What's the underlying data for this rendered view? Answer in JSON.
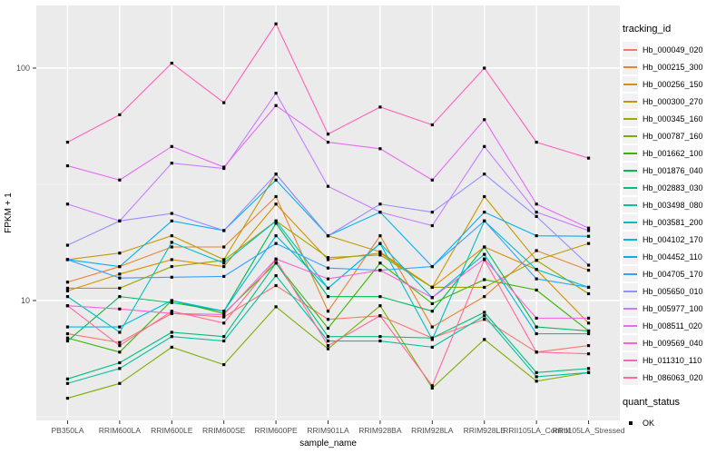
{
  "chart_data": {
    "type": "line",
    "title": "",
    "xlabel": "sample_name",
    "ylabel": "FPKM + 1",
    "y_scale": "log10",
    "y_ticks": [
      10,
      100
    ],
    "y_minor_ticks": [
      3.162,
      31.62
    ],
    "y_range": [
      3.2,
      180
    ],
    "grid": "on",
    "panel_bg": "#EBEBEB",
    "grid_color": "#FFFFFF",
    "tick_label_color": "#4D4D4D",
    "marker": "black-square",
    "legend_position": "right",
    "legend_title": "tracking_id",
    "legend2_title": "quant_status",
    "legend2_items": [
      "OK"
    ],
    "x_categories": [
      "PB350LA",
      "RRIM600LA",
      "RRIM600LE",
      "RRIM600SE",
      "RRIM600PE",
      "RRIM901LA",
      "RRIM928BA",
      "RRIM928LA",
      "RRIM928LE",
      "RRII105LA_Control",
      "RRII105LA_Stressed"
    ],
    "series": [
      {
        "name": "Hb_000049_020",
        "color": "#F8766D",
        "values": [
          7.2,
          6.6,
          8.8,
          8.5,
          11.6,
          8.3,
          8.6,
          6.9,
          8.3,
          6.0,
          6.4
        ]
      },
      {
        "name": "Hb_000215_300",
        "color": "#EA8331",
        "values": [
          12.0,
          14.0,
          17.0,
          17.0,
          28.0,
          9.0,
          19.0,
          7.7,
          10.4,
          16.4,
          13.5
        ]
      },
      {
        "name": "Hb_000256_150",
        "color": "#D89000",
        "values": [
          11.0,
          13.0,
          15.0,
          14.0,
          26.0,
          15.0,
          16.0,
          11.4,
          17.0,
          13.6,
          8.0
        ]
      },
      {
        "name": "Hb_000300_270",
        "color": "#C09B00",
        "values": [
          15.0,
          16.0,
          19.0,
          15.0,
          35.0,
          19.0,
          16.2,
          11.4,
          28.0,
          14.9,
          17.6
        ]
      },
      {
        "name": "Hb_000345_160",
        "color": "#A3A500",
        "values": [
          11.3,
          11.3,
          14.0,
          14.9,
          22.0,
          15.3,
          15.7,
          11.4,
          11.4,
          14.9,
          10.7
        ]
      },
      {
        "name": "Hb_000787_160",
        "color": "#7CAE00",
        "values": [
          3.8,
          4.4,
          6.3,
          5.3,
          9.4,
          6.2,
          9.5,
          4.2,
          6.8,
          4.5,
          4.9
        ]
      },
      {
        "name": "Hb_001662_100",
        "color": "#39B600",
        "values": [
          6.9,
          6.0,
          10.0,
          8.8,
          14.5,
          7.6,
          14.5,
          9.7,
          12.3,
          11.1,
          7.4
        ]
      },
      {
        "name": "Hb_001876_040",
        "color": "#00BB4E",
        "values": [
          6.7,
          10.4,
          9.8,
          9.0,
          21.5,
          10.4,
          10.4,
          9.0,
          17.0,
          7.7,
          7.4
        ]
      },
      {
        "name": "Hb_002883_030",
        "color": "#00BF7D",
        "values": [
          4.6,
          5.4,
          7.3,
          7.0,
          14.5,
          7.0,
          7.0,
          6.9,
          8.9,
          4.9,
          5.1
        ]
      },
      {
        "name": "Hb_003498_080",
        "color": "#00C1A3",
        "values": [
          4.4,
          5.1,
          7.0,
          6.7,
          12.8,
          6.7,
          6.7,
          6.3,
          8.6,
          4.7,
          4.9
        ]
      },
      {
        "name": "Hb_003581_200",
        "color": "#00BFC4",
        "values": [
          10.4,
          7.3,
          17.8,
          14.5,
          22.0,
          11.3,
          17.6,
          6.8,
          22.0,
          13.6,
          11.4
        ]
      },
      {
        "name": "Hb_004102_170",
        "color": "#00BAE0",
        "values": [
          7.7,
          7.7,
          10.0,
          9.0,
          19.0,
          11.3,
          17.6,
          10.3,
          15.8,
          7.2,
          7.2
        ]
      },
      {
        "name": "Hb_004452_110",
        "color": "#00B0F6",
        "values": [
          15.0,
          14.0,
          22.0,
          20.0,
          33.0,
          19.0,
          24.0,
          14.0,
          24.0,
          19.0,
          18.9
        ]
      },
      {
        "name": "Hb_004705_170",
        "color": "#35A2FF",
        "values": [
          15.0,
          12.5,
          12.6,
          12.7,
          17.6,
          13.8,
          13.5,
          14.0,
          22.0,
          12.4,
          11.4
        ]
      },
      {
        "name": "Hb_005650_010",
        "color": "#9590FF",
        "values": [
          17.3,
          22.0,
          23.7,
          20.0,
          35.0,
          19.0,
          26.0,
          24.0,
          35.0,
          23.0,
          14.2
        ]
      },
      {
        "name": "Hb_005977_100",
        "color": "#C77CFF",
        "values": [
          26.0,
          22.0,
          39.0,
          37.0,
          78.0,
          31.0,
          24.0,
          21.0,
          46.0,
          24.0,
          20.0
        ]
      },
      {
        "name": "Hb_008511_020",
        "color": "#E76BF3",
        "values": [
          38.0,
          33.0,
          46.0,
          37.5,
          69.0,
          48.0,
          45.0,
          33.0,
          60.0,
          26.0,
          20.5
        ]
      },
      {
        "name": "Hb_009569_040",
        "color": "#FA62DB",
        "values": [
          9.5,
          9.2,
          8.8,
          8.7,
          15.1,
          12.4,
          13.5,
          10.3,
          15.1,
          8.4,
          8.4
        ]
      },
      {
        "name": "Hb_011310_110",
        "color": "#FF62BC",
        "values": [
          48.0,
          63.0,
          105.0,
          71.0,
          155.0,
          52.0,
          68.0,
          57.0,
          100.0,
          48.0,
          41.0
        ]
      },
      {
        "name": "Hb_086063_020",
        "color": "#FF6A98",
        "values": [
          9.5,
          6.4,
          9.0,
          8.0,
          15.0,
          6.4,
          8.6,
          4.3,
          15.0,
          6.0,
          5.9
        ]
      }
    ]
  }
}
